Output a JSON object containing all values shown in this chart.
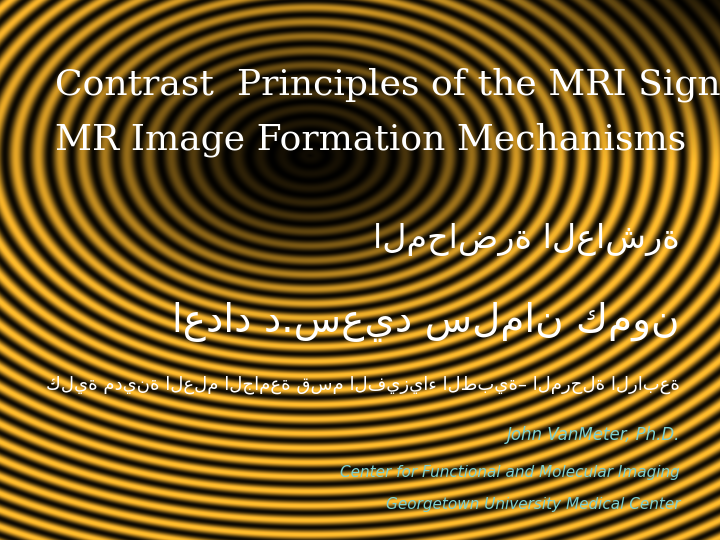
{
  "title_line1": "Contrast  Principles of the MRI Signal",
  "title_line2": "MR Image Formation Mechanisms",
  "arabic_line1": "المحاضرة العاشرة",
  "arabic_line2": "اعداد د.سعيد سلمان كمون",
  "arabic_line3": "كلية مدينة العلم الجامعة قسم الفيزياء الطبية– المرحلة الرابعة",
  "credit_line1": "John VanMeter, Ph.D.",
  "credit_line2": "Center for Functional and Molecular Imaging",
  "credit_line3": "Georgetown University Medical Center",
  "title_color": "#ffffff",
  "arabic1_color": "#ffffff",
  "arabic2_color": "#ffffff",
  "arabic3_color": "#ffffff",
  "credit_color": "#7ecfcf",
  "title_fontsize": 26,
  "arabic1_fontsize": 24,
  "arabic2_fontsize": 28,
  "arabic3_fontsize": 13,
  "credit_fontsize": 12
}
